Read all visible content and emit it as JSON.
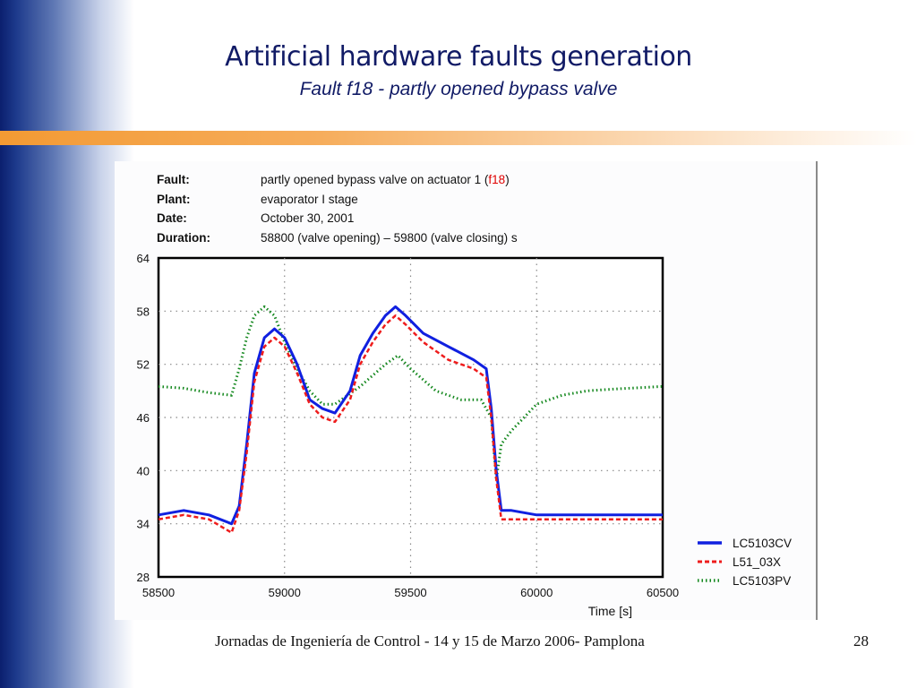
{
  "slide": {
    "title": "Artificial hardware faults generation",
    "subtitle": "Fault f18 - partly opened bypass valve",
    "footer": "Jornadas de Ingeniería de Control - 14 y 15 de Marzo 2006- Pamplona",
    "page_number": "28"
  },
  "info": {
    "fault_label": "Fault:",
    "fault_value_prefix": "partly opened bypass valve on actuator 1 (",
    "fault_code": "f18",
    "fault_value_suffix": ")",
    "plant_label": "Plant:",
    "plant_value": "evaporator I stage",
    "date_label": "Date:",
    "date_value": "October 30, 2001",
    "duration_label": "Duration:",
    "duration_value": "58800 (valve opening) – 59800 (valve closing) s"
  },
  "colors": {
    "LC5103CV": "#1020e0",
    "L51_03X": "#ee1c1c",
    "LC5103PV": "#14881e",
    "title": "#111b66",
    "accent": "#f39a33"
  },
  "chart_data": {
    "type": "line",
    "xlabel": "Time [s]",
    "ylabel": "",
    "xlim": [
      58500,
      60500
    ],
    "ylim": [
      28,
      64
    ],
    "x_ticks": [
      58500,
      59000,
      59500,
      60000,
      60500
    ],
    "y_ticks": [
      64,
      58,
      52,
      46,
      40,
      34,
      28
    ],
    "grid": true,
    "legend_position": "bottom-right",
    "series": [
      {
        "name": "LC5103CV",
        "style": "solid",
        "x": [
          58500,
          58600,
          58700,
          58790,
          58820,
          58850,
          58880,
          58920,
          58960,
          59000,
          59050,
          59100,
          59150,
          59200,
          59260,
          59300,
          59350,
          59400,
          59440,
          59480,
          59550,
          59650,
          59750,
          59800,
          59820,
          59840,
          59860,
          59900,
          60000,
          60200,
          60500
        ],
        "y": [
          35,
          35.5,
          35,
          34,
          36,
          43,
          51,
          55,
          56,
          55,
          52,
          48,
          47,
          46.5,
          49,
          53,
          55.5,
          57.5,
          58.5,
          57.5,
          55.5,
          54,
          52.5,
          51.5,
          47,
          40,
          35.5,
          35.5,
          35,
          35,
          35
        ]
      },
      {
        "name": "L51_03X",
        "style": "dashed",
        "x": [
          58500,
          58600,
          58700,
          58790,
          58820,
          58850,
          58880,
          58920,
          58960,
          59000,
          59050,
          59100,
          59150,
          59200,
          59260,
          59300,
          59350,
          59400,
          59440,
          59480,
          59550,
          59650,
          59750,
          59800,
          59820,
          59840,
          59860,
          59900,
          60000,
          60200,
          60500
        ],
        "y": [
          34.5,
          35,
          34.5,
          33,
          35.5,
          42,
          50,
          54,
          55,
          54,
          51,
          47.5,
          46,
          45.5,
          48,
          52,
          54.5,
          56.5,
          57.5,
          56.5,
          54.5,
          52.5,
          51.5,
          50.5,
          46,
          39,
          34.5,
          34.5,
          34.5,
          34.5,
          34.5
        ]
      },
      {
        "name": "LC5103PV",
        "style": "dotted",
        "x": [
          58500,
          58600,
          58700,
          58790,
          58820,
          58850,
          58880,
          58920,
          58960,
          59000,
          59050,
          59100,
          59150,
          59200,
          59300,
          59400,
          59450,
          59500,
          59600,
          59700,
          59780,
          59820,
          59840,
          59860,
          59900,
          59950,
          60000,
          60100,
          60200,
          60300,
          60500
        ],
        "y": [
          49.5,
          49.3,
          48.8,
          48.5,
          51.5,
          55,
          57.5,
          58.5,
          57.5,
          54.5,
          51.5,
          49,
          47.5,
          47.5,
          49.5,
          52,
          53,
          51.5,
          49,
          48,
          48,
          46,
          39,
          43,
          44.5,
          46,
          47.5,
          48.5,
          49,
          49.2,
          49.5
        ]
      }
    ]
  }
}
